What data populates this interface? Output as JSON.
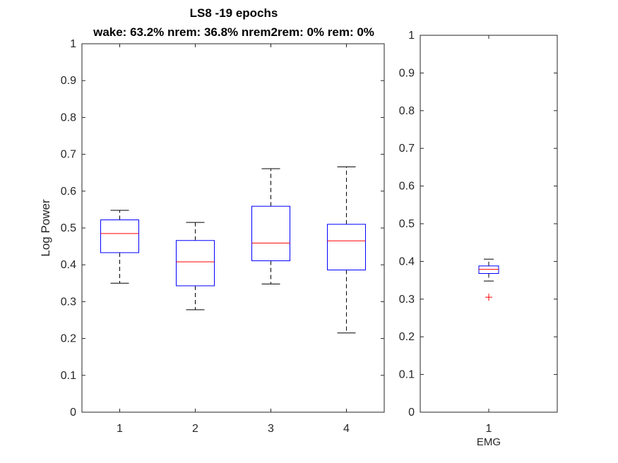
{
  "chart_data": [
    {
      "type": "box",
      "title": "LS8 -19 epochs",
      "subtitle": "wake: 63.2% nrem: 36.8% nrem2rem: 0% rem: 0%",
      "xlabel": "",
      "ylabel": "Log Power",
      "ylim": [
        0,
        1
      ],
      "yticks": [
        "0",
        "0.1",
        "0.2",
        "0.3",
        "0.4",
        "0.5",
        "0.6",
        "0.7",
        "0.8",
        "0.9",
        "1"
      ],
      "categories": [
        "1",
        "2",
        "3",
        "4"
      ],
      "boxes": [
        {
          "whisker_low": 0.35,
          "q1": 0.433,
          "median": 0.485,
          "q3": 0.522,
          "whisker_high": 0.548,
          "outliers": []
        },
        {
          "whisker_low": 0.278,
          "q1": 0.343,
          "median": 0.408,
          "q3": 0.466,
          "whisker_high": 0.515,
          "outliers": []
        },
        {
          "whisker_low": 0.348,
          "q1": 0.411,
          "median": 0.459,
          "q3": 0.559,
          "whisker_high": 0.661,
          "outliers": []
        },
        {
          "whisker_low": 0.215,
          "q1": 0.386,
          "median": 0.465,
          "q3": 0.51,
          "whisker_high": 0.666,
          "outliers": []
        }
      ],
      "box_color": "#0000ff",
      "median_color": "#ff0000",
      "whisker_color": "#000000",
      "grid": false
    },
    {
      "type": "box",
      "title": "",
      "xlabel": "EMG",
      "ylabel": "",
      "ylim": [
        0,
        1
      ],
      "yticks": [
        "0",
        "0.1",
        "0.2",
        "0.3",
        "0.4",
        "0.5",
        "0.6",
        "0.7",
        "0.8",
        "0.9",
        "1"
      ],
      "categories": [
        "1"
      ],
      "boxes": [
        {
          "whisker_low": 0.348,
          "q1": 0.368,
          "median": 0.379,
          "q3": 0.388,
          "whisker_high": 0.406,
          "outliers": [
            0.305
          ]
        }
      ],
      "box_color": "#0000ff",
      "median_color": "#ff0000",
      "outlier_color": "#ff0000",
      "whisker_color": "#000000",
      "grid": false
    }
  ]
}
